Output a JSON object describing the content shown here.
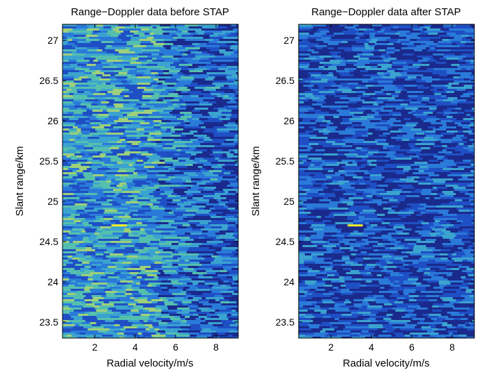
{
  "chart_data": [
    {
      "type": "heatmap",
      "title": "Range−Doppler data before STAP",
      "xlabel": "Radial velocity/m/s",
      "ylabel": "Slant range/km",
      "xlim": [
        0.4,
        9.1
      ],
      "ylim": [
        23.3,
        27.2
      ],
      "x_ticks": [
        2,
        4,
        6,
        8
      ],
      "y_ticks": [
        23.5,
        24,
        24.5,
        25,
        25.5,
        26,
        26.5,
        27
      ],
      "colormap": [
        "#1a2a8c",
        "#1f4fc4",
        "#2a7ad9",
        "#3ba3cf",
        "#55bfae",
        "#9ed07a",
        "#e6e04a"
      ],
      "background_level": "high clutter, stronger at low radial velocity (< 5 m/s)",
      "target": {
        "x": 3.2,
        "y": 24.7,
        "color": "#f5ec28"
      }
    },
    {
      "type": "heatmap",
      "title": "Range−Doppler data after STAP",
      "xlabel": "Radial velocity/m/s",
      "ylabel": "Slant range/km",
      "xlim": [
        0.4,
        9.1
      ],
      "ylim": [
        23.3,
        27.2
      ],
      "x_ticks": [
        2,
        4,
        6,
        8
      ],
      "y_ticks": [
        23.5,
        24,
        24.5,
        25,
        25.5,
        26,
        26.5,
        27
      ],
      "colormap": [
        "#1a2a8c",
        "#1f4fc4",
        "#2a7ad9",
        "#3ba3cf",
        "#55bfae",
        "#9ed07a",
        "#e6e04a"
      ],
      "background_level": "clutter suppressed, mostly dark blue noise",
      "target": {
        "x": 3.2,
        "y": 24.7,
        "color": "#f5ec28"
      }
    }
  ]
}
